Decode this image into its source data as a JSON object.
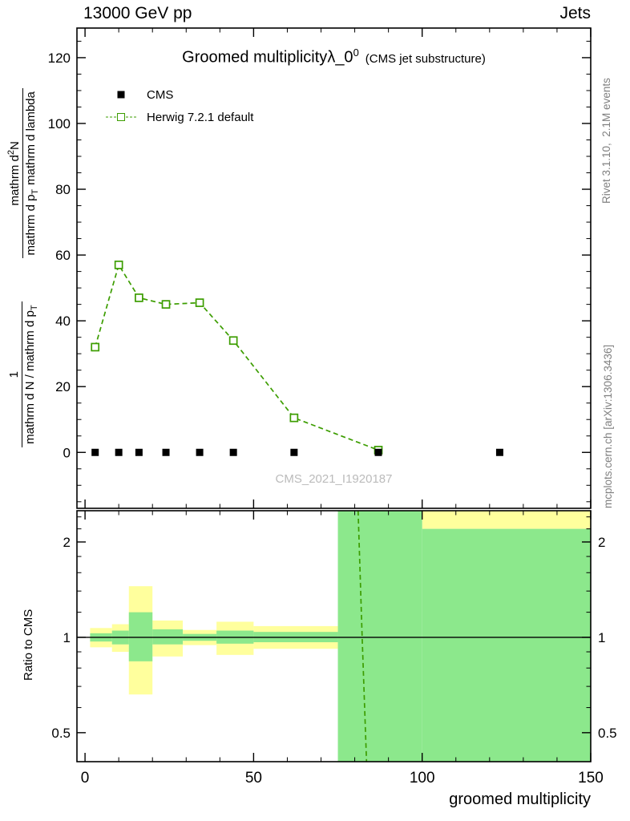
{
  "header": {
    "left": "13000 GeV pp",
    "right": "Jets"
  },
  "side_labels": {
    "top_right": "Rivet 3.1.10,  2.1M events",
    "bottom_right": "mcplots.cern.ch [arXiv:1306.3436]"
  },
  "main_panel": {
    "title_pre": "Groomed multiplicity",
    "title_sym": "λ_0",
    "title_sup": "0",
    "title_suffix": "(CMS jet substructure)",
    "watermark": "CMS_2021_I1920187",
    "ylabel": {
      "frac1_num": "1",
      "frac1_den_pre": "mathrm d N / mathrm d p",
      "frac1_den_sub": "T",
      "frac2_num_pre": "mathrm d",
      "frac2_num_sup": "2",
      "frac2_num_post": "N",
      "frac2_den_pre": "mathrm d p",
      "frac2_den_sub": "T",
      "frac2_den_post": "mathrm d lambda"
    },
    "legend": [
      {
        "label": "CMS",
        "marker": "filled-square",
        "color": "#000000"
      },
      {
        "label": "Herwig 7.2.1 default",
        "marker": "open-square-dashed",
        "color": "#3c9d00"
      }
    ]
  },
  "ratio_panel": {
    "ylabel": "Ratio to CMS"
  },
  "xaxis": {
    "label": "groomed multiplicity"
  },
  "colors": {
    "herwig_green": "#3c9d00",
    "band_yellow": "#ffff9d",
    "band_green": "#8ce88c",
    "cms_black": "#000000",
    "gray_text": "#808080",
    "watermark_gray": "#bbbbbb"
  },
  "chart_data": [
    {
      "id": "main",
      "type": "line",
      "title": "Groomed multiplicity lambda_0^0 (CMS jet substructure)",
      "xlabel": "groomed multiplicity",
      "xlim": [
        -2.4,
        150
      ],
      "ylim": [
        -17,
        129
      ],
      "xticks": [
        0,
        50,
        100,
        150
      ],
      "xtick_minor_step": 10,
      "yticks": [
        0,
        20,
        40,
        60,
        80,
        100,
        120
      ],
      "ytick_minor_step": 5,
      "grid": false,
      "legend_position": "top-left",
      "series": [
        {
          "name": "CMS",
          "type": "scatter",
          "marker": "filled-square",
          "color": "#000000",
          "x": [
            3,
            10,
            16,
            24,
            34,
            44,
            62,
            87,
            123
          ],
          "y": [
            0,
            0,
            0,
            0,
            0,
            0,
            0,
            0,
            0
          ]
        },
        {
          "name": "Herwig 7.2.1 default",
          "type": "line+scatter",
          "marker": "open-square",
          "dashed": true,
          "color": "#3c9d00",
          "x": [
            3,
            10,
            16,
            24,
            34,
            44,
            62,
            87
          ],
          "y": [
            32,
            57,
            47,
            45,
            45.5,
            34,
            10.5,
            0.7
          ]
        }
      ]
    },
    {
      "id": "ratio",
      "type": "ratio-bands",
      "ylabel": "Ratio to CMS",
      "yscale": "log",
      "ylim": [
        0.405,
        2.51
      ],
      "yticks": [
        0.5,
        1,
        2
      ],
      "ytick_minors": [
        0.6,
        0.7,
        0.8,
        0.9,
        1.2,
        1.4,
        1.6,
        1.8,
        2.2,
        2.4
      ],
      "reference_line": 1,
      "bands": [
        {
          "x0": 1.5,
          "x1": 8,
          "yellow": [
            0.93,
            1.07
          ],
          "green": [
            0.97,
            1.03
          ]
        },
        {
          "x0": 8,
          "x1": 13,
          "yellow": [
            0.9,
            1.1
          ],
          "green": [
            0.95,
            1.05
          ]
        },
        {
          "x0": 13,
          "x1": 20,
          "yellow": [
            0.66,
            1.45
          ],
          "green": [
            0.84,
            1.2
          ]
        },
        {
          "x0": 20,
          "x1": 29,
          "yellow": [
            0.87,
            1.13
          ],
          "green": [
            0.95,
            1.06
          ]
        },
        {
          "x0": 29,
          "x1": 39,
          "yellow": [
            0.945,
            1.055
          ],
          "green": [
            0.975,
            1.025
          ]
        },
        {
          "x0": 39,
          "x1": 50,
          "yellow": [
            0.88,
            1.12
          ],
          "green": [
            0.955,
            1.05
          ]
        },
        {
          "x0": 50,
          "x1": 75,
          "yellow": [
            0.92,
            1.085
          ],
          "green": [
            0.965,
            1.04
          ]
        },
        {
          "x0": 75,
          "x1": 100,
          "yellow": null,
          "green": [
            0.405,
            2.51
          ]
        },
        {
          "x0": 100,
          "x1": 150,
          "yellow": [
            2.2,
            2.51
          ],
          "green": [
            0.405,
            2.2
          ]
        }
      ],
      "series": [
        {
          "name": "Herwig 7.2.1 default",
          "dashed": true,
          "color": "#3c9d00",
          "x": [
            81,
            82.2,
            83.5
          ],
          "y": [
            2.51,
            1.0,
            0.405
          ]
        }
      ]
    }
  ]
}
